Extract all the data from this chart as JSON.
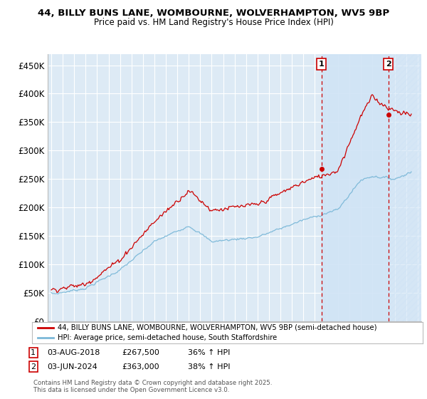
{
  "title1": "44, BILLY BUNS LANE, WOMBOURNE, WOLVERHAMPTON, WV5 9BP",
  "title2": "Price paid vs. HM Land Registry's House Price Index (HPI)",
  "ylabel_vals": [
    "£0",
    "£50K",
    "£100K",
    "£150K",
    "£200K",
    "£250K",
    "£300K",
    "£350K",
    "£400K",
    "£450K"
  ],
  "ylabel_nums": [
    0,
    50000,
    100000,
    150000,
    200000,
    250000,
    300000,
    350000,
    400000,
    450000
  ],
  "ylim": [
    0,
    470000
  ],
  "xlim_start": 1994.7,
  "xlim_end": 2027.3,
  "sale1_x": 2018.58,
  "sale1_y": 267500,
  "sale2_x": 2024.42,
  "sale2_y": 363000,
  "hpi_color": "#7bb8d8",
  "price_color": "#cc0000",
  "vline_color": "#cc0000",
  "shade_color": "#d0e4f5",
  "plot_bg_color": "#ddeaf5",
  "grid_color": "#ffffff",
  "legend1_text": "44, BILLY BUNS LANE, WOMBOURNE, WOLVERHAMPTON, WV5 9BP (semi-detached house)",
  "legend2_text": "HPI: Average price, semi-detached house, South Staffordshire",
  "footnote3": "Contains HM Land Registry data © Crown copyright and database right 2025.",
  "footnote4": "This data is licensed under the Open Government Licence v3.0."
}
